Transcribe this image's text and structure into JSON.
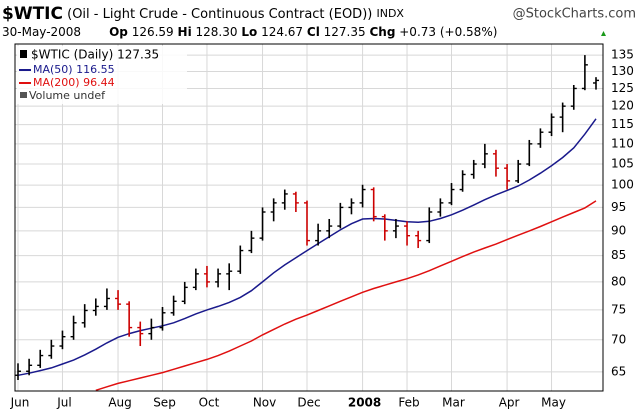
{
  "chart_data": {
    "type": "ohlc",
    "title": "$WTIC",
    "subtitle": "(Oil - Light Crude - Continuous Contract (EOD))",
    "exchange": "INDX",
    "source": "@StockCharts.com",
    "date": "30-May-2008",
    "quote": {
      "op_label": "Op",
      "op": "126.59",
      "hi_label": "Hi",
      "hi": "128.30",
      "lo_label": "Lo",
      "lo": "124.67",
      "cl_label": "Cl",
      "cl": "127.35",
      "chg_label": "Chg",
      "chg": "+0.73",
      "chg_pct": "(+0.58%)"
    },
    "volume_label": "Volume undef",
    "categories": [
      "Jun",
      null,
      null,
      null,
      "Jul",
      null,
      null,
      null,
      null,
      "Aug",
      null,
      null,
      null,
      "Sep",
      null,
      null,
      null,
      "Oct",
      null,
      null,
      null,
      null,
      "Nov",
      null,
      null,
      null,
      "Dec",
      null,
      null,
      null,
      null,
      "2008",
      null,
      null,
      null,
      "Feb",
      null,
      null,
      null,
      "Mar",
      null,
      null,
      null,
      null,
      "Apr",
      null,
      null,
      null,
      "May",
      null,
      null,
      null,
      null
    ],
    "log_y": true,
    "y_axis_side": "right",
    "grid": true,
    "legend": "upper left",
    "ylim": [
      62.2,
      138.5
    ],
    "yticks": [
      65,
      70,
      75,
      80,
      85,
      90,
      95,
      100,
      105,
      110,
      115,
      120,
      125,
      130,
      135
    ],
    "ohlc": {
      "name": "$WTIC (Daily) 127.35",
      "up_color": "#000000",
      "down_color": "#cc0000",
      "open": [
        64.5,
        65.1,
        66.0,
        67.5,
        69.0,
        70.5,
        72.8,
        74.9,
        75.6,
        77.0,
        76.0,
        72.0,
        71.0,
        72.0,
        74.5,
        76.5,
        79.0,
        81.5,
        80.0,
        81.5,
        82.0,
        86.0,
        88.5,
        94.0,
        96.0,
        98.0,
        96.0,
        88.0,
        90.0,
        91.0,
        95.0,
        96.0,
        99.0,
        93.0,
        90.0,
        91.0,
        89.0,
        88.0,
        94.0,
        96.0,
        99.0,
        102.5,
        105.0,
        107.5,
        104.0,
        101.0,
        105.0,
        110.0,
        113.0,
        117.0,
        120.0,
        125.0,
        126.59
      ],
      "high": [
        66.3,
        67.0,
        68.4,
        70.0,
        71.5,
        74.0,
        76.0,
        77.0,
        78.8,
        78.5,
        76.5,
        73.0,
        73.5,
        75.5,
        77.5,
        80.0,
        82.5,
        83.0,
        82.5,
        83.5,
        87.0,
        90.0,
        95.0,
        97.0,
        99.0,
        98.5,
        96.5,
        91.5,
        92.5,
        96.0,
        97.0,
        100.1,
        99.5,
        93.5,
        92.5,
        92.0,
        90.0,
        95.0,
        97.0,
        100.5,
        103.5,
        106.0,
        110.0,
        108.5,
        105.0,
        106.0,
        111.0,
        114.0,
        118.0,
        121.0,
        126.0,
        135.0,
        128.3
      ],
      "low": [
        63.8,
        64.5,
        65.6,
        67.0,
        68.5,
        70.0,
        72.0,
        74.0,
        75.0,
        75.0,
        70.5,
        69.0,
        70.0,
        71.5,
        74.0,
        76.0,
        78.5,
        79.0,
        79.0,
        78.5,
        81.5,
        85.5,
        88.0,
        92.0,
        94.5,
        94.0,
        87.0,
        87.0,
        88.5,
        90.5,
        93.5,
        95.0,
        92.0,
        88.0,
        88.5,
        87.0,
        86.5,
        87.5,
        93.0,
        95.5,
        98.5,
        101.5,
        104.0,
        102.0,
        99.0,
        100.5,
        104.5,
        109.0,
        112.0,
        113.0,
        119.0,
        124.5,
        124.67
      ],
      "close": [
        65.1,
        66.0,
        67.5,
        69.0,
        70.5,
        72.8,
        74.9,
        75.6,
        77.0,
        76.0,
        72.0,
        71.0,
        72.0,
        74.5,
        76.5,
        79.0,
        81.5,
        80.0,
        81.5,
        82.0,
        86.0,
        88.5,
        94.0,
        96.0,
        98.0,
        96.0,
        88.0,
        90.0,
        91.0,
        95.0,
        96.0,
        99.0,
        93.0,
        90.0,
        91.0,
        89.0,
        88.0,
        94.0,
        96.0,
        99.0,
        102.5,
        105.0,
        107.5,
        104.0,
        101.0,
        105.0,
        110.0,
        113.0,
        117.0,
        120.0,
        125.0,
        132.0,
        127.35
      ]
    },
    "series": [
      {
        "name": "MA(50) 116.55",
        "color": "#1a1a8c",
        "values": [
          64.5,
          64.8,
          65.2,
          65.6,
          66.2,
          66.8,
          67.6,
          68.5,
          69.5,
          70.4,
          71.0,
          71.5,
          71.9,
          72.3,
          72.8,
          73.5,
          74.3,
          75.0,
          75.6,
          76.3,
          77.2,
          78.4,
          80.0,
          81.7,
          83.2,
          84.6,
          86.0,
          87.4,
          88.8,
          90.2,
          91.5,
          92.5,
          92.6,
          92.5,
          92.2,
          91.9,
          91.8,
          92.0,
          92.6,
          93.4,
          94.4,
          95.5,
          96.7,
          97.8,
          98.8,
          99.8,
          101.2,
          102.8,
          104.6,
          106.6,
          109.0,
          112.5,
          116.55
        ]
      },
      {
        "name": "MA(200) 96.44",
        "color": "#e01010",
        "values": [
          null,
          null,
          null,
          null,
          null,
          null,
          null,
          62.3,
          62.8,
          63.3,
          63.7,
          64.1,
          64.5,
          64.9,
          65.4,
          65.9,
          66.4,
          66.9,
          67.5,
          68.2,
          69.0,
          69.8,
          70.8,
          71.7,
          72.6,
          73.4,
          74.1,
          74.9,
          75.7,
          76.5,
          77.3,
          78.1,
          78.8,
          79.4,
          80.0,
          80.6,
          81.3,
          82.1,
          83.0,
          83.9,
          84.8,
          85.7,
          86.5,
          87.3,
          88.2,
          89.1,
          90.0,
          90.9,
          91.9,
          92.9,
          93.9,
          94.9,
          96.44
        ]
      }
    ]
  }
}
